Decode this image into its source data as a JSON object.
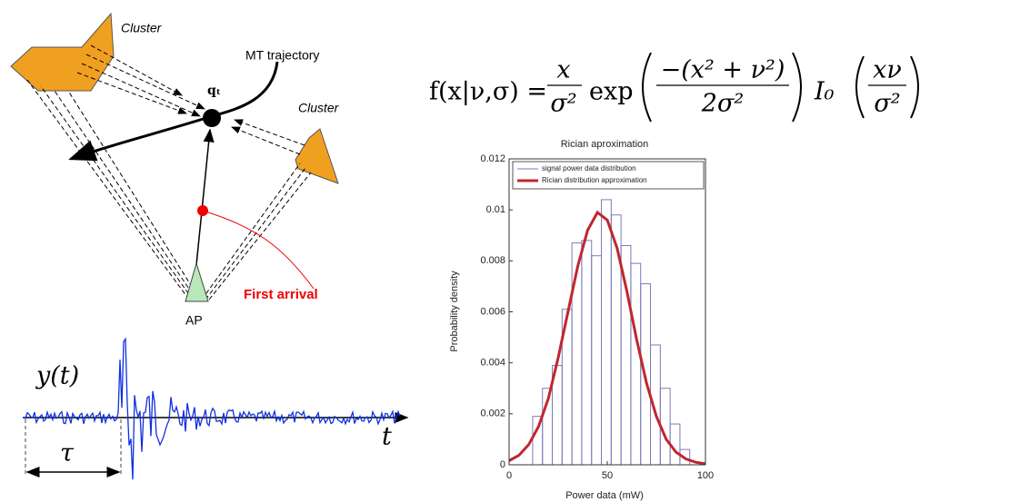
{
  "diagram": {
    "cluster_left": "Cluster",
    "cluster_right": "Cluster",
    "trajectory": "MT trajectory",
    "position": "qₜ",
    "first_arrival": "First arrival",
    "ap": "AP"
  },
  "signal": {
    "y_label": "y(t)",
    "t_label": "t",
    "delay_label": "τ"
  },
  "formula": {
    "lhs": "f(x|ν,σ) =",
    "f1_num": "x",
    "f1_den": "σ²",
    "exp": "exp",
    "f2_num": "−(x² + ν²)",
    "f2_den": "2σ²",
    "bessel": "I₀",
    "f3_num": "xν",
    "f3_den": "σ²"
  },
  "chart_data": {
    "type": "histogram",
    "title": "Rician aproximation",
    "x_label": "Power data (mW)",
    "y_label": "Probability density",
    "xlim": [
      0,
      100
    ],
    "ylim": [
      0,
      0.012
    ],
    "xticks": [
      0,
      50,
      100
    ],
    "yticks": [
      0,
      0.002,
      0.004,
      0.006,
      0.008,
      0.01,
      0.012
    ],
    "legend": "upper right",
    "series": [
      {
        "name": "signal power data distribution",
        "color": "#7b7bb8",
        "type": "histogram",
        "bins": [
          12,
          17,
          22,
          27,
          32,
          37,
          42,
          47,
          52,
          57,
          62,
          67,
          72,
          77,
          82,
          87,
          92
        ],
        "values": [
          0.0019,
          0.003,
          0.0039,
          0.0061,
          0.0087,
          0.0088,
          0.0082,
          0.0104,
          0.0098,
          0.0086,
          0.0079,
          0.0071,
          0.0047,
          0.003,
          0.0016,
          0.0006
        ]
      },
      {
        "name": "Rician distribution approximation",
        "color": "#c0272d",
        "type": "line",
        "x": [
          0,
          5,
          10,
          15,
          20,
          25,
          30,
          35,
          40,
          45,
          50,
          55,
          60,
          65,
          70,
          75,
          80,
          85,
          90,
          95,
          100
        ],
        "values": [
          0.00016,
          0.00037,
          0.00079,
          0.0015,
          0.0026,
          0.0042,
          0.006,
          0.0078,
          0.0092,
          0.0099,
          0.0096,
          0.0085,
          0.0068,
          0.0049,
          0.0032,
          0.0019,
          0.001,
          0.0005,
          0.00023,
          0.0001,
          4e-05
        ]
      }
    ]
  }
}
